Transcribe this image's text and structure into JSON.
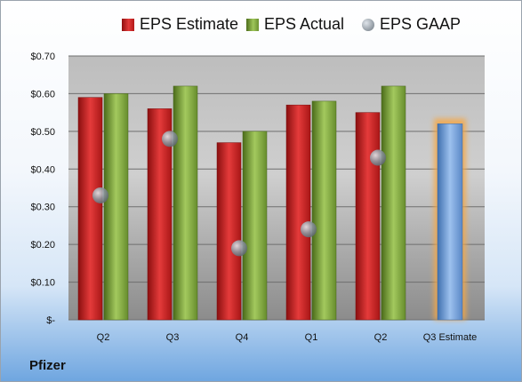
{
  "company": "Pfizer",
  "legend": {
    "estimate": "EPS Estimate",
    "actual": "EPS Actual",
    "gaap": "EPS GAAP"
  },
  "colors": {
    "estimate": "#c21b1b",
    "actual": "#7da23a",
    "gaap": "#9099a2",
    "forecast": "#6fa0dc",
    "forecast_glow": "#f4a84a"
  },
  "chart_data": {
    "type": "bar",
    "categories": [
      "Q2",
      "Q3",
      "Q4",
      "Q1",
      "Q2",
      "Q3 Estimate"
    ],
    "series": [
      {
        "name": "EPS Estimate",
        "values": [
          0.59,
          0.56,
          0.47,
          0.57,
          0.55,
          null
        ]
      },
      {
        "name": "EPS Actual",
        "values": [
          0.6,
          0.62,
          0.5,
          0.58,
          0.62,
          null
        ]
      },
      {
        "name": "EPS GAAP",
        "values": [
          0.33,
          0.48,
          0.19,
          0.24,
          0.43,
          null
        ]
      },
      {
        "name": "Q3 Estimate",
        "values": [
          null,
          null,
          null,
          null,
          null,
          0.52
        ]
      }
    ],
    "yticks": [
      "$-",
      "$0.10",
      "$0.20",
      "$0.30",
      "$0.40",
      "$0.50",
      "$0.60",
      "$0.70"
    ],
    "ylim": [
      0,
      0.7
    ],
    "grid": true,
    "legend_position": "top"
  }
}
